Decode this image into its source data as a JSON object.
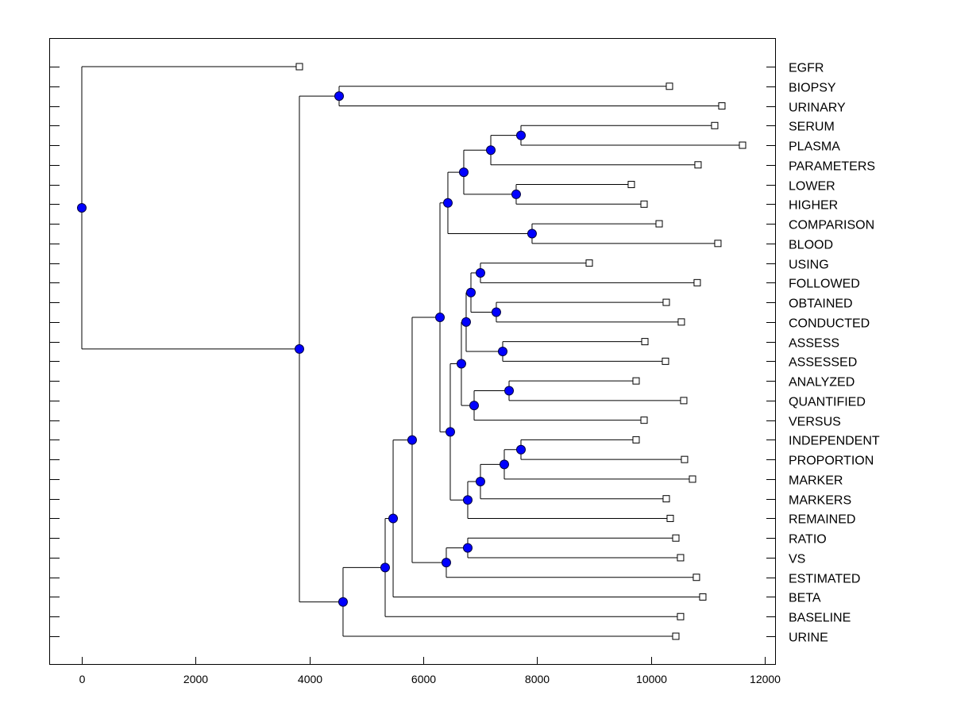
{
  "chart_data": {
    "type": "dendrogram",
    "title": "",
    "xlabel": "",
    "ylabel": "",
    "xlim": [
      -600,
      12100
    ],
    "xticks": [
      0,
      2000,
      4000,
      6000,
      8000,
      10000,
      12000
    ],
    "grid": false,
    "leaf_order": [
      "EGFR",
      "BIOPSY",
      "URINARY",
      "SERUM",
      "PLASMA",
      "PARAMETERS",
      "LOWER",
      "HIGHER",
      "COMPARISON",
      "BLOOD",
      "USING",
      "FOLLOWED",
      "OBTAINED",
      "CONDUCTED",
      "ASSESS",
      "ASSESSED",
      "ANALYZED",
      "QUANTIFIED",
      "VERSUS",
      "INDEPENDENT",
      "PROPORTION",
      "MARKER",
      "MARKERS",
      "REMAINED",
      "RATIO",
      "VS",
      "ESTIMATED",
      "BETA",
      "BASELINE",
      "URINE"
    ],
    "tree": {
      "h": 0,
      "c": [
        {
          "leaf": "EGFR",
          "h": 3823
        },
        {
          "h": 3823,
          "c": [
            {
              "h": 4521,
              "c": [
                {
                  "leaf": "BIOPSY",
                  "h": 10325
                },
                {
                  "leaf": "URINARY",
                  "h": 11246
                }
              ]
            },
            {
              "h": 4590,
              "c": [
                {
                  "h": 5330,
                  "c": [
                    {
                      "h": 5470,
                      "c": [
                        {
                          "h": 5804,
                          "c": [
                            {
                              "h": 6293,
                              "c": [
                                {
                                  "h": 6432,
                                  "c": [
                                    {
                                      "h": 6711,
                                      "c": [
                                        {
                                          "h": 7186,
                                          "c": [
                                            {
                                              "h": 7716,
                                              "c": [
                                                {
                                                  "leaf": "SERUM",
                                                  "h": 11120
                                                },
                                                {
                                                  "leaf": "PLASMA",
                                                  "h": 11609
                                                }
                                              ]
                                            },
                                            {
                                              "leaf": "PARAMETERS",
                                              "h": 10827
                                            }
                                          ]
                                        },
                                        {
                                          "h": 7632,
                                          "c": [
                                            {
                                              "leaf": "LOWER",
                                              "h": 9655
                                            },
                                            {
                                              "leaf": "HIGHER",
                                              "h": 9879
                                            }
                                          ]
                                        }
                                      ]
                                    },
                                    {
                                      "h": 7911,
                                      "c": [
                                        {
                                          "leaf": "COMPARISON",
                                          "h": 10144
                                        },
                                        {
                                          "leaf": "BLOOD",
                                          "h": 11176
                                        }
                                      ]
                                    }
                                  ]
                                },
                                {
                                  "h": 6474,
                                  "c": [
                                    {
                                      "h": 6669,
                                      "c": [
                                        {
                                          "h": 6753,
                                          "c": [
                                            {
                                              "h": 6837,
                                              "c": [
                                                {
                                                  "h": 7004,
                                                  "c": [
                                                    {
                                                      "leaf": "USING",
                                                      "h": 8916
                                                    },
                                                    {
                                                      "leaf": "FOLLOWED",
                                                      "h": 10813
                                                    }
                                                  ]
                                                },
                                                {
                                                  "h": 7283,
                                                  "c": [
                                                    {
                                                      "leaf": "OBTAINED",
                                                      "h": 10269
                                                    },
                                                    {
                                                      "leaf": "CONDUCTED",
                                                      "h": 10534
                                                    }
                                                  ]
                                                }
                                              ]
                                            },
                                            {
                                              "h": 7395,
                                              "c": [
                                                {
                                                  "leaf": "ASSESS",
                                                  "h": 9893
                                                },
                                                {
                                                  "leaf": "ASSESSED",
                                                  "h": 10255
                                                }
                                              ]
                                            }
                                          ]
                                        },
                                        {
                                          "h": 6893,
                                          "c": [
                                            {
                                              "h": 7507,
                                              "c": [
                                                {
                                                  "leaf": "ANALYZED",
                                                  "h": 9739
                                                },
                                                {
                                                  "leaf": "QUANTIFIED",
                                                  "h": 10576
                                                }
                                              ]
                                            },
                                            {
                                              "leaf": "VERSUS",
                                              "h": 9879
                                            }
                                          ]
                                        }
                                      ]
                                    },
                                    {
                                      "h": 6781,
                                      "c": [
                                        {
                                          "h": 7004,
                                          "c": [
                                            {
                                              "h": 7423,
                                              "c": [
                                                {
                                                  "h": 7716,
                                                  "c": [
                                                    {
                                                      "leaf": "INDEPENDENT",
                                                      "h": 9739
                                                    },
                                                    {
                                                      "leaf": "PROPORTION",
                                                      "h": 10590
                                                    }
                                                  ]
                                                },
                                                {
                                                  "leaf": "MARKER",
                                                  "h": 10730
                                                }
                                              ]
                                            },
                                            {
                                              "leaf": "MARKERS",
                                              "h": 10269
                                            }
                                          ]
                                        },
                                        {
                                          "leaf": "REMAINED",
                                          "h": 10339
                                        }
                                      ]
                                    }
                                  ]
                                }
                              ]
                            },
                            {
                              "h": 6404,
                              "c": [
                                {
                                  "h": 6781,
                                  "c": [
                                    {
                                      "leaf": "RATIO",
                                      "h": 10437
                                    },
                                    {
                                      "leaf": "VS",
                                      "h": 10520
                                    }
                                  ]
                                },
                                {
                                  "leaf": "ESTIMATED",
                                  "h": 10799
                                }
                              ]
                            }
                          ]
                        },
                        {
                          "leaf": "BETA",
                          "h": 10911
                        }
                      ]
                    },
                    {
                      "leaf": "BASELINE",
                      "h": 10520
                    }
                  ]
                },
                {
                  "leaf": "URINE",
                  "h": 10437
                }
              ]
            }
          ]
        }
      ]
    },
    "colors": {
      "node": "#0000ff",
      "leaf": "#ffffff",
      "line": "#000000"
    }
  }
}
